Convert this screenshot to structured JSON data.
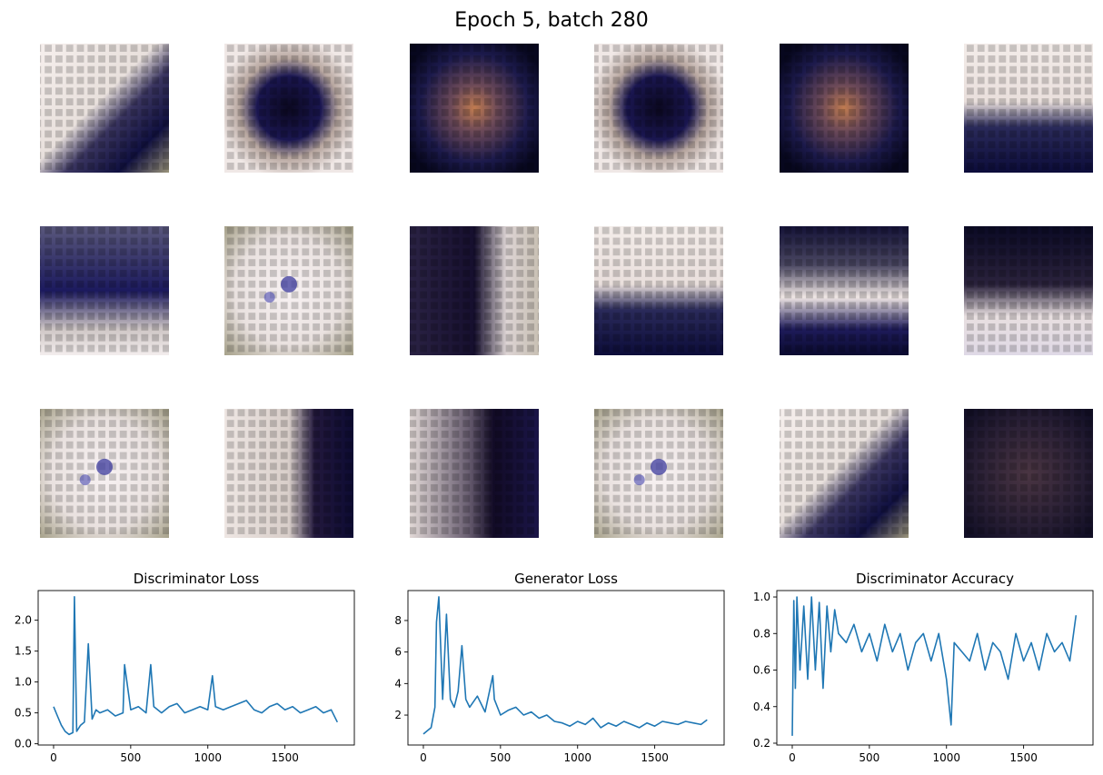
{
  "figure": {
    "title": "Epoch 5, batch 280"
  },
  "samples": {
    "rows": 3,
    "cols": 6,
    "images": [
      {
        "style": "light-top-dark-bottom-right"
      },
      {
        "style": "dark-blob-center"
      },
      {
        "style": "dark-grid-orange-center"
      },
      {
        "style": "dark-blob-center"
      },
      {
        "style": "dark-grid-orange-center"
      },
      {
        "style": "light-top-dark-bottom"
      },
      {
        "style": "blue-haze-dark-center"
      },
      {
        "style": "light-with-blue-spots"
      },
      {
        "style": "dark-blob-left"
      },
      {
        "style": "light-top-dark-bottom"
      },
      {
        "style": "dark-edges-light-center"
      },
      {
        "style": "dark-top-light-bottom"
      },
      {
        "style": "light-with-blue-spots"
      },
      {
        "style": "light-left-dark-right"
      },
      {
        "style": "dark-blob-right"
      },
      {
        "style": "light-with-blue-spots"
      },
      {
        "style": "light-top-dark-bottom-right"
      },
      {
        "style": "dark-grid-brown"
      }
    ]
  },
  "colors": {
    "line": "#1f77b4",
    "axis": "#000000",
    "background": "#ffffff"
  },
  "chart_data": [
    {
      "type": "line",
      "title": "Discriminator Loss",
      "xlabel": "",
      "ylabel": "",
      "xlim": [
        -100,
        1950
      ],
      "ylim": [
        -0.02,
        2.48
      ],
      "xticks": [
        0,
        500,
        1000,
        1500
      ],
      "yticks": [
        0.0,
        0.5,
        1.0,
        1.5,
        2.0
      ],
      "ytick_labels": [
        "0.0",
        "0.5",
        "1.0",
        "1.5",
        "2.0"
      ],
      "grid": false,
      "series": [
        {
          "x": [
            0,
            25,
            50,
            75,
            100,
            125,
            135,
            150,
            175,
            200,
            225,
            250,
            275,
            300,
            350,
            400,
            450,
            460,
            500,
            550,
            600,
            630,
            650,
            700,
            750,
            800,
            850,
            900,
            950,
            1000,
            1030,
            1050,
            1100,
            1150,
            1200,
            1250,
            1300,
            1350,
            1400,
            1450,
            1500,
            1550,
            1600,
            1650,
            1700,
            1750,
            1800,
            1840
          ],
          "values": [
            0.6,
            0.45,
            0.3,
            0.2,
            0.15,
            0.18,
            2.38,
            0.2,
            0.3,
            0.35,
            1.62,
            0.4,
            0.55,
            0.5,
            0.55,
            0.45,
            0.5,
            1.28,
            0.55,
            0.6,
            0.5,
            1.28,
            0.6,
            0.5,
            0.6,
            0.65,
            0.5,
            0.55,
            0.6,
            0.55,
            1.1,
            0.6,
            0.55,
            0.6,
            0.65,
            0.7,
            0.55,
            0.5,
            0.6,
            0.65,
            0.55,
            0.6,
            0.5,
            0.55,
            0.6,
            0.5,
            0.55,
            0.35
          ]
        }
      ]
    },
    {
      "type": "line",
      "title": "Generator Loss",
      "xlabel": "",
      "ylabel": "",
      "xlim": [
        -100,
        1950
      ],
      "ylim": [
        0.1,
        9.9
      ],
      "xticks": [
        0,
        500,
        1000,
        1500
      ],
      "yticks": [
        2,
        4,
        6,
        8
      ],
      "ytick_labels": [
        "2",
        "4",
        "6",
        "8"
      ],
      "grid": false,
      "series": [
        {
          "x": [
            0,
            25,
            50,
            75,
            85,
            100,
            125,
            150,
            175,
            200,
            225,
            250,
            275,
            300,
            350,
            400,
            450,
            460,
            500,
            550,
            600,
            650,
            700,
            750,
            800,
            850,
            900,
            950,
            1000,
            1050,
            1100,
            1150,
            1200,
            1250,
            1300,
            1350,
            1400,
            1450,
            1500,
            1550,
            1600,
            1650,
            1700,
            1750,
            1800,
            1840
          ],
          "values": [
            0.8,
            1.0,
            1.2,
            2.5,
            7.9,
            9.5,
            3.0,
            8.4,
            3.0,
            2.5,
            3.5,
            6.4,
            3.0,
            2.5,
            3.2,
            2.2,
            4.5,
            3.0,
            2.0,
            2.3,
            2.5,
            2.0,
            2.2,
            1.8,
            2.0,
            1.6,
            1.5,
            1.3,
            1.6,
            1.4,
            1.8,
            1.2,
            1.5,
            1.3,
            1.6,
            1.4,
            1.2,
            1.5,
            1.3,
            1.6,
            1.5,
            1.4,
            1.6,
            1.5,
            1.4,
            1.7
          ]
        }
      ]
    },
    {
      "type": "line",
      "title": "Discriminator Accuracy",
      "xlabel": "",
      "ylabel": "",
      "xlim": [
        -100,
        1950
      ],
      "ylim": [
        0.19,
        1.035
      ],
      "xticks": [
        0,
        500,
        1000,
        1500
      ],
      "yticks": [
        0.2,
        0.4,
        0.6,
        0.8,
        1.0
      ],
      "ytick_labels": [
        "0.2",
        "0.4",
        "0.6",
        "0.8",
        "1.0"
      ],
      "grid": false,
      "series": [
        {
          "x": [
            0,
            10,
            20,
            30,
            50,
            75,
            100,
            125,
            150,
            175,
            200,
            225,
            250,
            275,
            300,
            350,
            400,
            450,
            500,
            550,
            600,
            650,
            700,
            750,
            800,
            850,
            900,
            950,
            1000,
            1030,
            1050,
            1100,
            1150,
            1200,
            1250,
            1300,
            1350,
            1400,
            1450,
            1500,
            1550,
            1600,
            1650,
            1700,
            1750,
            1800,
            1840
          ],
          "values": [
            0.24,
            0.98,
            0.5,
            1.0,
            0.6,
            0.95,
            0.55,
            1.0,
            0.6,
            0.97,
            0.5,
            0.95,
            0.7,
            0.93,
            0.8,
            0.75,
            0.85,
            0.7,
            0.8,
            0.65,
            0.85,
            0.7,
            0.8,
            0.6,
            0.75,
            0.8,
            0.65,
            0.8,
            0.55,
            0.3,
            0.75,
            0.7,
            0.65,
            0.8,
            0.6,
            0.75,
            0.7,
            0.55,
            0.8,
            0.65,
            0.75,
            0.6,
            0.8,
            0.7,
            0.75,
            0.65,
            0.9
          ]
        }
      ]
    }
  ]
}
